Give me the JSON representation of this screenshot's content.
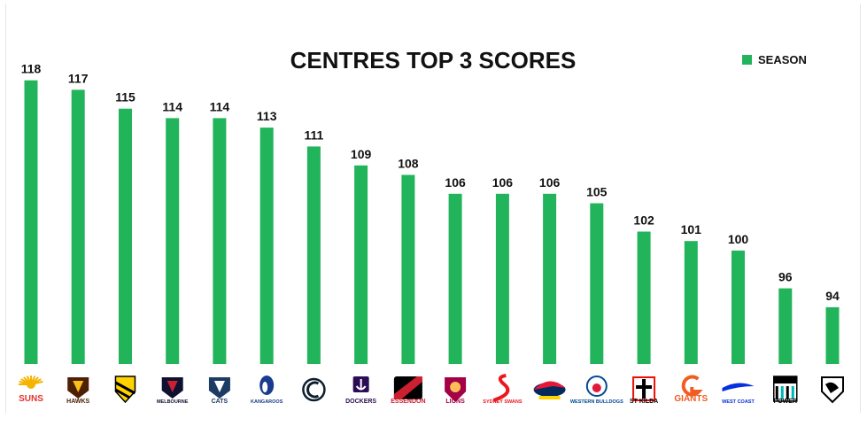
{
  "chart_data": {
    "type": "bar",
    "title": "CENTRES TOP 3 SCORES",
    "legend": {
      "position": "top-right",
      "entries": [
        {
          "name": "SEASON",
          "color": "#22b45a"
        }
      ]
    },
    "xlabel": "",
    "ylabel": "",
    "ylim": [
      88,
      119
    ],
    "grid": false,
    "categories": [
      "Gold Coast Suns",
      "Hawthorn",
      "Richmond",
      "Melbourne",
      "Geelong",
      "North Melbourne",
      "Carlton",
      "Fremantle",
      "Essendon",
      "Brisbane Lions",
      "Sydney Swans",
      "Adelaide",
      "Western Bulldogs",
      "St Kilda",
      "GWS Giants",
      "West Coast",
      "Port Adelaide",
      "Collingwood"
    ],
    "series": [
      {
        "name": "SEASON",
        "values": [
          118,
          117,
          115,
          114,
          114,
          113,
          111,
          109,
          108,
          106,
          106,
          106,
          105,
          102,
          101,
          100,
          96,
          94
        ]
      }
    ],
    "logos": [
      {
        "text": "SUNS",
        "color": "#e4322b",
        "accent": "#f4b400",
        "shape": "sun"
      },
      {
        "text": "HAWKS",
        "color": "#4d2004",
        "accent": "#fbbf15",
        "shape": "shield"
      },
      {
        "text": "",
        "color": "#000000",
        "accent": "#ffd200",
        "shape": "tiger"
      },
      {
        "text": "MELBOURNE",
        "color": "#0f1131",
        "accent": "#cc2031",
        "shape": "shield"
      },
      {
        "text": "CATS",
        "color": "#1c3c63",
        "accent": "#ffffff",
        "shape": "shield"
      },
      {
        "text": "KANGAROOS",
        "color": "#1a3b8e",
        "accent": "#ffffff",
        "shape": "roo"
      },
      {
        "text": "",
        "color": "#0e1e2d",
        "accent": "#ffffff",
        "shape": "monogram"
      },
      {
        "text": "DOCKERS",
        "color": "#2a0d54",
        "accent": "#ffffff",
        "shape": "anchor"
      },
      {
        "text": "ESSENDON",
        "color": "#cc2031",
        "accent": "#000000",
        "shape": "sash"
      },
      {
        "text": "LIONS",
        "color": "#a30046",
        "accent": "#fdbe57",
        "shape": "lion"
      },
      {
        "text": "SYDNEY SWANS",
        "color": "#ed171f",
        "accent": "#ffffff",
        "shape": "swan"
      },
      {
        "text": "",
        "color": "#002b5c",
        "accent": "#e21937",
        "shape": "crow"
      },
      {
        "text": "WESTERN BULLDOGS",
        "color": "#014896",
        "accent": "#e21937",
        "shape": "dog"
      },
      {
        "text": "ST KILDA",
        "color": "#000000",
        "accent": "#ed0f05",
        "shape": "cross"
      },
      {
        "text": "GIANTS",
        "color": "#f15c22",
        "accent": "#4a4f55",
        "shape": "giants"
      },
      {
        "text": "WEST COAST",
        "color": "#062ee2",
        "accent": "#f2a900",
        "shape": "eagle"
      },
      {
        "text": "POWER",
        "color": "#000000",
        "accent": "#01b5b6",
        "shape": "power"
      },
      {
        "text": "",
        "color": "#000000",
        "accent": "#ffffff",
        "shape": "magpie"
      }
    ]
  }
}
